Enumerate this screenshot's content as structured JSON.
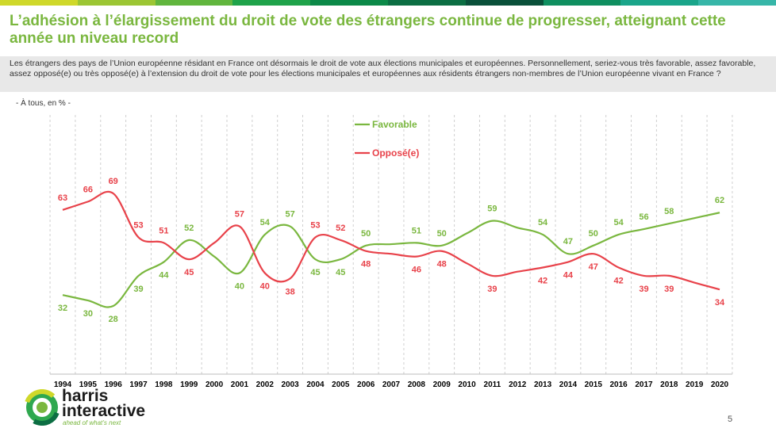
{
  "header": {
    "title": "L’adhésion à l’élargissement du droit de vote des étrangers continue de progresser, atteignant cette année un niveau record",
    "question": "Les étrangers des pays de l’Union européenne résidant en France ont désormais le droit de vote aux élections municipales et européennes. Personnellement, seriez-vous très favorable, assez favorable, assez opposé(e) ou très opposé(e) à l’extension du droit de vote pour les élections municipales et européennes aux résidents étrangers non-membres de l’Union européenne vivant en France ?",
    "base": "- À tous, en % -",
    "bar_colors": [
      "#cfd82a",
      "#9cc634",
      "#61b63e",
      "#1fa34a",
      "#0c8948",
      "#0c6e43",
      "#0a503a",
      "#0f8f60",
      "#1aa58a",
      "#37b6a8"
    ]
  },
  "chart_data": {
    "type": "line",
    "x": [
      "1994",
      "1995",
      "1996",
      "1997",
      "1998",
      "1999",
      "2000",
      "2001",
      "2002",
      "2003",
      "2004",
      "2005",
      "2006",
      "2007",
      "2008",
      "2009",
      "2010",
      "2011",
      "2012",
      "2013",
      "2014",
      "2015",
      "2016",
      "2017",
      "2018",
      "2019",
      "2020"
    ],
    "series": [
      {
        "name": "Favorable",
        "color": "#7ab73f",
        "values": [
          32,
          30,
          28,
          39,
          44,
          52,
          null,
          40,
          54,
          57,
          45,
          45,
          50,
          null,
          51,
          50,
          null,
          59,
          null,
          54,
          47,
          50,
          54,
          56,
          58,
          null,
          62
        ]
      },
      {
        "name": "Opposé(e)",
        "color": "#e8424a",
        "values": [
          63,
          66,
          69,
          53,
          51,
          45,
          null,
          57,
          40,
          38,
          53,
          52,
          48,
          null,
          46,
          48,
          null,
          39,
          null,
          42,
          44,
          47,
          42,
          39,
          39,
          null,
          34
        ]
      }
    ],
    "ylim": [
      0,
      100
    ],
    "grid": "vertical",
    "legend": "top-center"
  },
  "branding": {
    "logo_name": "harris interactive",
    "logo_word1": "harris",
    "logo_word2": "interactive",
    "tagline": "ahead of what’s next",
    "page_number": "5"
  }
}
